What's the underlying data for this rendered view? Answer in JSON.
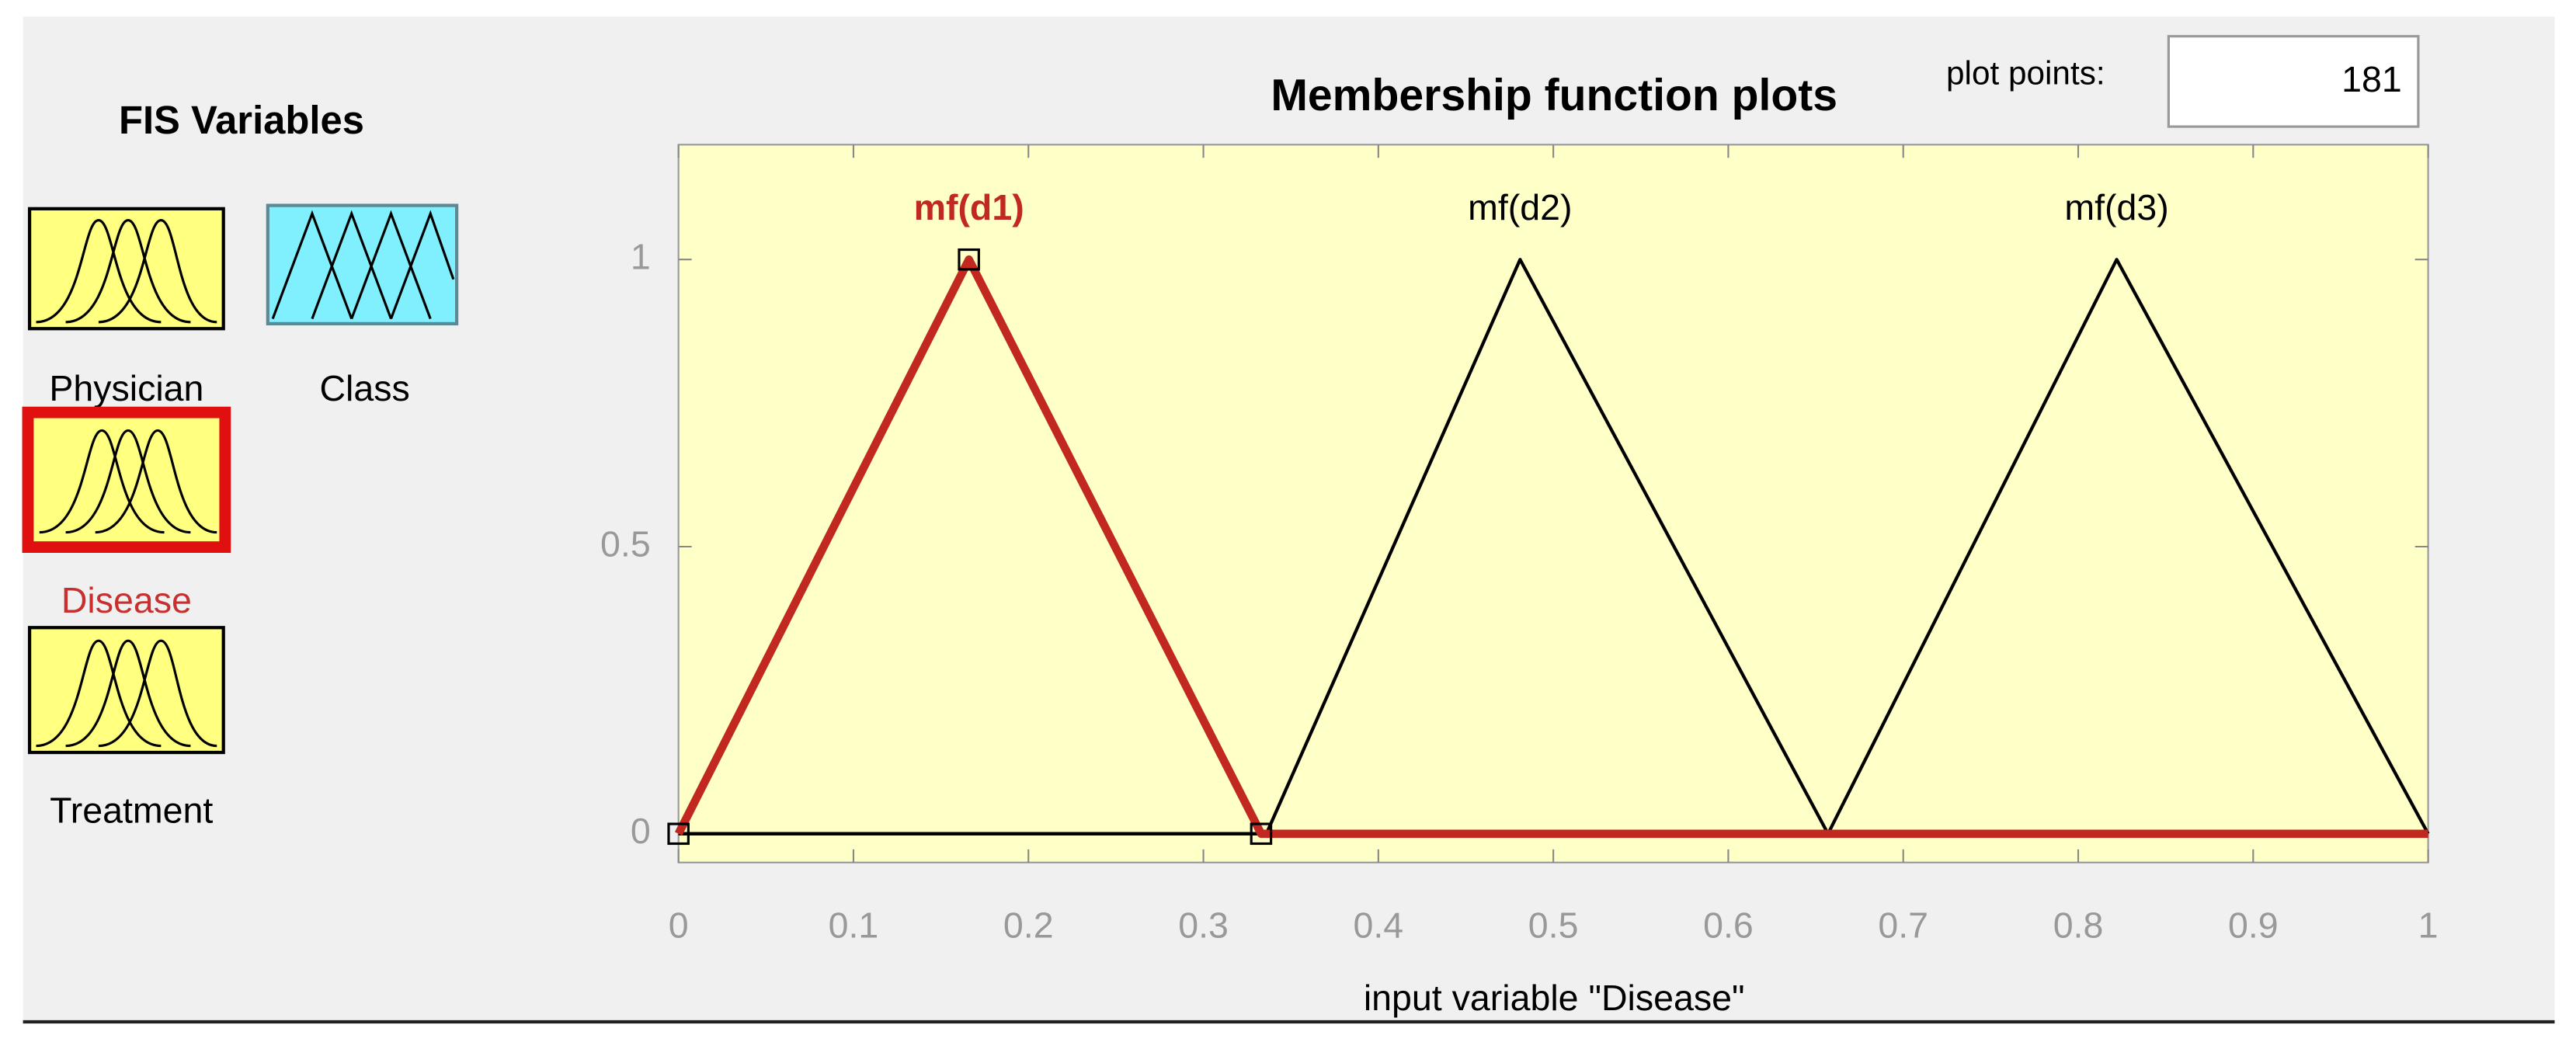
{
  "fis_variables": {
    "title": "FIS Variables",
    "variables": [
      "Physician",
      "Class",
      "Disease",
      "Treatment"
    ]
  },
  "plot_points": {
    "label": "plot points:",
    "value": 181
  },
  "chart_data": {
    "type": "line",
    "title": "Membership function plots",
    "x_label": "input variable \"Disease\"",
    "xlim": [
      0,
      1
    ],
    "xticks": [
      0,
      0.1,
      0.2,
      0.3,
      0.4,
      0.5,
      0.6,
      0.7,
      0.8,
      0.9,
      1
    ],
    "ylim": [
      -0.05,
      1.2
    ],
    "yticks": [
      0,
      0.5,
      1
    ],
    "grid": false,
    "background": "#ffffc8",
    "series": [
      {
        "name": "mf(d2)",
        "color": "#000000",
        "line_width": 2,
        "x": [
          0,
          0.336,
          0.481,
          0.657,
          1
        ],
        "values": [
          0,
          0,
          1,
          0,
          0
        ]
      },
      {
        "name": "mf(d3)",
        "color": "#000000",
        "line_width": 2,
        "x": [
          0,
          0.657,
          0.822,
          1
        ],
        "values": [
          0,
          0,
          1,
          0
        ]
      },
      {
        "name": "mf(d1)",
        "color": "#c1281f",
        "line_width": 5,
        "x": [
          0,
          0.166,
          0.333,
          1
        ],
        "values": [
          0,
          1,
          0,
          0
        ]
      }
    ]
  }
}
